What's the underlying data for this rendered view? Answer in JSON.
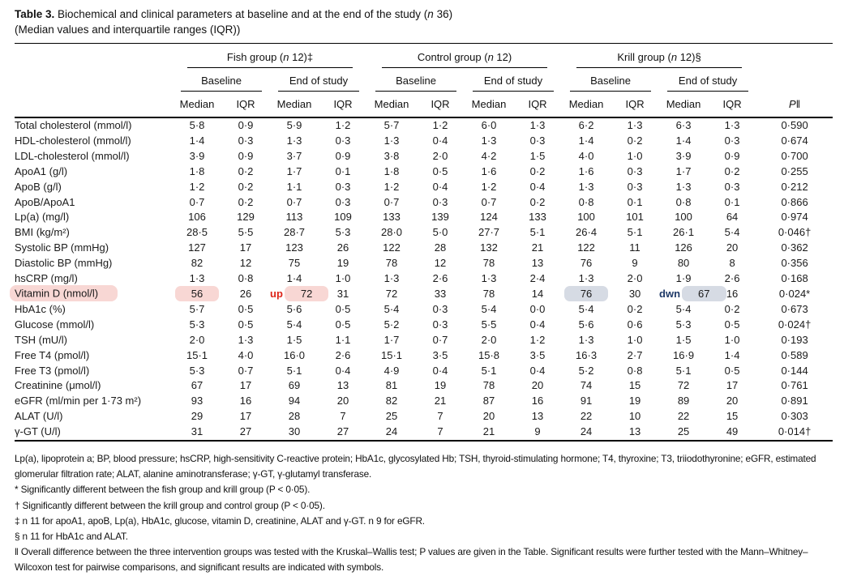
{
  "caption": {
    "label": "Table 3.",
    "body": " Biochemical and clinical parameters at baseline and at the end of the study (",
    "n": "n",
    "close": " 36)",
    "subtitle": "(Median values and interquartile ranges (IQR))"
  },
  "colors": {
    "highlight_pink": "#f8d7d4",
    "highlight_blue": "#d6dbe4",
    "annotation_red": "#dd2418",
    "annotation_navy": "#1f3a68",
    "rule_black": "#000000"
  },
  "table": {
    "groups": [
      {
        "pre": "Fish group (",
        "n": "n",
        "post": " 12)‡"
      },
      {
        "pre": "Control group (",
        "n": "n",
        "post": " 12)"
      },
      {
        "pre": "Krill group (",
        "n": "n",
        "post": " 12)§"
      }
    ],
    "header": {
      "baseline": "Baseline",
      "end": "End of study",
      "median": "Median",
      "iqr": "IQR",
      "p_pre": "P",
      "p_mark": "‖"
    },
    "rows": [
      {
        "label": "Total cholesterol (mmol/l)",
        "values": [
          "5·8",
          "0·9",
          "5·9",
          "1·2",
          "5·7",
          "1·2",
          "6·0",
          "1·3",
          "6·2",
          "1·3",
          "6·3",
          "1·3"
        ],
        "p": "0·590"
      },
      {
        "label": "HDL-cholesterol (mmol/l)",
        "values": [
          "1·4",
          "0·3",
          "1·3",
          "0·3",
          "1·3",
          "0·4",
          "1·3",
          "0·3",
          "1·4",
          "0·2",
          "1·4",
          "0·3"
        ],
        "p": "0·674"
      },
      {
        "label": "LDL-cholesterol (mmol/l)",
        "values": [
          "3·9",
          "0·9",
          "3·7",
          "0·9",
          "3·8",
          "2·0",
          "4·2",
          "1·5",
          "4·0",
          "1·0",
          "3·9",
          "0·9"
        ],
        "p": "0·700"
      },
      {
        "label": "ApoA1 (g/l)",
        "values": [
          "1·8",
          "0·2",
          "1·7",
          "0·1",
          "1·8",
          "0·5",
          "1·6",
          "0·2",
          "1·6",
          "0·3",
          "1·7",
          "0·2"
        ],
        "p": "0·255"
      },
      {
        "label": "ApoB (g/l)",
        "values": [
          "1·2",
          "0·2",
          "1·1",
          "0·3",
          "1·2",
          "0·4",
          "1·2",
          "0·4",
          "1·3",
          "0·3",
          "1·3",
          "0·3"
        ],
        "p": "0·212"
      },
      {
        "label": "ApoB/ApoA1",
        "values": [
          "0·7",
          "0·2",
          "0·7",
          "0·3",
          "0·7",
          "0·3",
          "0·7",
          "0·2",
          "0·8",
          "0·1",
          "0·8",
          "0·1"
        ],
        "p": "0·866"
      },
      {
        "label": "Lp(a) (mg/l)",
        "values": [
          "106",
          "129",
          "113",
          "109",
          "133",
          "139",
          "124",
          "133",
          "100",
          "101",
          "100",
          "64"
        ],
        "p": "0·974"
      },
      {
        "label": "BMI (kg/m²)",
        "values": [
          "28·5",
          "5·5",
          "28·7",
          "5·3",
          "28·0",
          "5·0",
          "27·7",
          "5·1",
          "26·4",
          "5·1",
          "26·1",
          "5·4"
        ],
        "p": "0·046†"
      },
      {
        "label": "Systolic BP (mmHg)",
        "values": [
          "127",
          "17",
          "123",
          "26",
          "122",
          "28",
          "132",
          "21",
          "122",
          "11",
          "126",
          "20"
        ],
        "p": "0·362"
      },
      {
        "label": "Diastolic BP (mmHg)",
        "values": [
          "82",
          "12",
          "75",
          "19",
          "78",
          "12",
          "78",
          "13",
          "76",
          "9",
          "80",
          "8"
        ],
        "p": "0·356"
      },
      {
        "label": "hsCRP (mg/l)",
        "values": [
          "1·3",
          "0·8",
          "1·4",
          "1·0",
          "1·3",
          "2·6",
          "1·3",
          "2·4",
          "1·3",
          "2·0",
          "1·9",
          "2·6"
        ],
        "p": "0·168"
      },
      {
        "label": "Vitamin D (nmol/l)",
        "values": [
          "56",
          "26",
          "72",
          "31",
          "72",
          "33",
          "78",
          "14",
          "76",
          "30",
          "67",
          "16"
        ],
        "p": "0·024*"
      },
      {
        "label": "HbA1c (%)",
        "values": [
          "5·7",
          "0·5",
          "5·6",
          "0·5",
          "5·4",
          "0·3",
          "5·4",
          "0·0",
          "5·4",
          "0·2",
          "5·4",
          "0·2"
        ],
        "p": "0·673"
      },
      {
        "label": "Glucose (mmol/l)",
        "values": [
          "5·3",
          "0·5",
          "5·4",
          "0·5",
          "5·2",
          "0·3",
          "5·5",
          "0·4",
          "5·6",
          "0·6",
          "5·3",
          "0·5"
        ],
        "p": "0·024†"
      },
      {
        "label": "TSH (mU/l)",
        "values": [
          "2·0",
          "1·3",
          "1·5",
          "1·1",
          "1·7",
          "0·7",
          "2·0",
          "1·2",
          "1·3",
          "1·0",
          "1·5",
          "1·0"
        ],
        "p": "0·193"
      },
      {
        "label": "Free T4 (pmol/l)",
        "values": [
          "15·1",
          "4·0",
          "16·0",
          "2·6",
          "15·1",
          "3·5",
          "15·8",
          "3·5",
          "16·3",
          "2·7",
          "16·9",
          "1·4"
        ],
        "p": "0·589"
      },
      {
        "label": "Free T3 (pmol/l)",
        "values": [
          "5·3",
          "0·7",
          "5·1",
          "0·4",
          "4·9",
          "0·4",
          "5·1",
          "0·4",
          "5·2",
          "0·8",
          "5·1",
          "0·5"
        ],
        "p": "0·144"
      },
      {
        "label": "Creatinine (μmol/l)",
        "values": [
          "67",
          "17",
          "69",
          "13",
          "81",
          "19",
          "78",
          "20",
          "74",
          "15",
          "72",
          "17"
        ],
        "p": "0·761"
      },
      {
        "label": "eGFR (ml/min per 1·73 m²)",
        "values": [
          "93",
          "16",
          "94",
          "20",
          "82",
          "21",
          "87",
          "16",
          "91",
          "19",
          "89",
          "20"
        ],
        "p": "0·891"
      },
      {
        "label": "ALAT (U/l)",
        "values": [
          "29",
          "17",
          "28",
          "7",
          "25",
          "7",
          "20",
          "13",
          "22",
          "10",
          "22",
          "15"
        ],
        "p": "0·303"
      },
      {
        "label": "γ-GT (U/l)",
        "values": [
          "31",
          "27",
          "30",
          "27",
          "24",
          "7",
          "21",
          "9",
          "24",
          "13",
          "25",
          "49"
        ],
        "p": "0·014†"
      }
    ]
  },
  "highlights": {
    "row": 11,
    "label": {
      "style": "pink"
    },
    "cells": [
      {
        "col": 0,
        "style": "pink"
      },
      {
        "col": 2,
        "style": "pink",
        "note": "up",
        "note_style": "red"
      },
      {
        "col": 8,
        "style": "blue"
      },
      {
        "col": 10,
        "style": "blue",
        "note": "dwn",
        "note_style": "navy"
      }
    ]
  },
  "footnotes": [
    "Lp(a), lipoprotein a; BP, blood pressure; hsCRP, high-sensitivity C-reactive protein; HbA1c, glycosylated Hb; TSH, thyroid-stimulating hormone; T4, thyroxine; T3, triiodothyronine; eGFR, estimated glomerular filtration rate; ALAT, alanine aminotransferase; γ-GT, γ-glutamyl transferase.",
    "* Significantly different between the fish group and krill group (P < 0·05).",
    "† Significantly different between the krill group and control group (P < 0·05).",
    "‡ n 11 for apoA1, apoB, Lp(a), HbA1c, glucose, vitamin D, creatinine, ALAT and γ-GT. n 9 for eGFR.",
    "§ n 11 for HbA1c and ALAT.",
    "‖ Overall difference between the three intervention groups was tested with the Kruskal–Wallis test; P values are given in the Table. Significant results were further tested with the Mann–Whitney–Wilcoxon test for pairwise comparisons, and significant results are indicated with symbols."
  ]
}
